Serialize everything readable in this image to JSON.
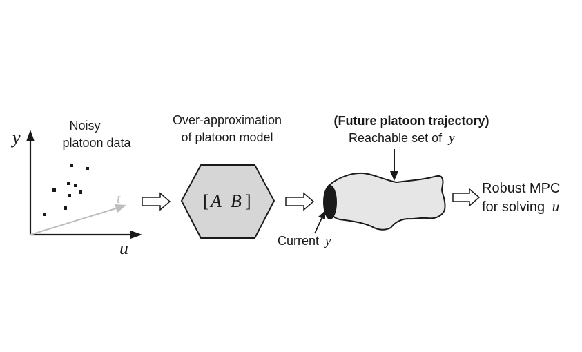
{
  "stage1": {
    "label_line1": "Noisy",
    "label_line2": "platoon data",
    "axis_y": "y",
    "axis_u": "u",
    "axis_t": "t"
  },
  "stage2": {
    "label_line1": "Over-approximation",
    "label_line2": "of platoon model",
    "matrix_a": "A",
    "matrix_b": "B",
    "bracket_open": "[",
    "bracket_close": "]"
  },
  "stage3": {
    "title": "(Future platoon trajectory)",
    "reachable_prefix": "Reachable set of",
    "reachable_var": "y",
    "current_prefix": "Current",
    "current_var": "y"
  },
  "stage4": {
    "line1": "Robust MPC",
    "line2_prefix": "for solving",
    "line2_var": "u"
  },
  "colors": {
    "stroke": "#1a1a1a",
    "hexagon_fill": "#d6d6d6",
    "tube_fill": "#e6e6e6",
    "t_axis": "#bdbdbd"
  }
}
